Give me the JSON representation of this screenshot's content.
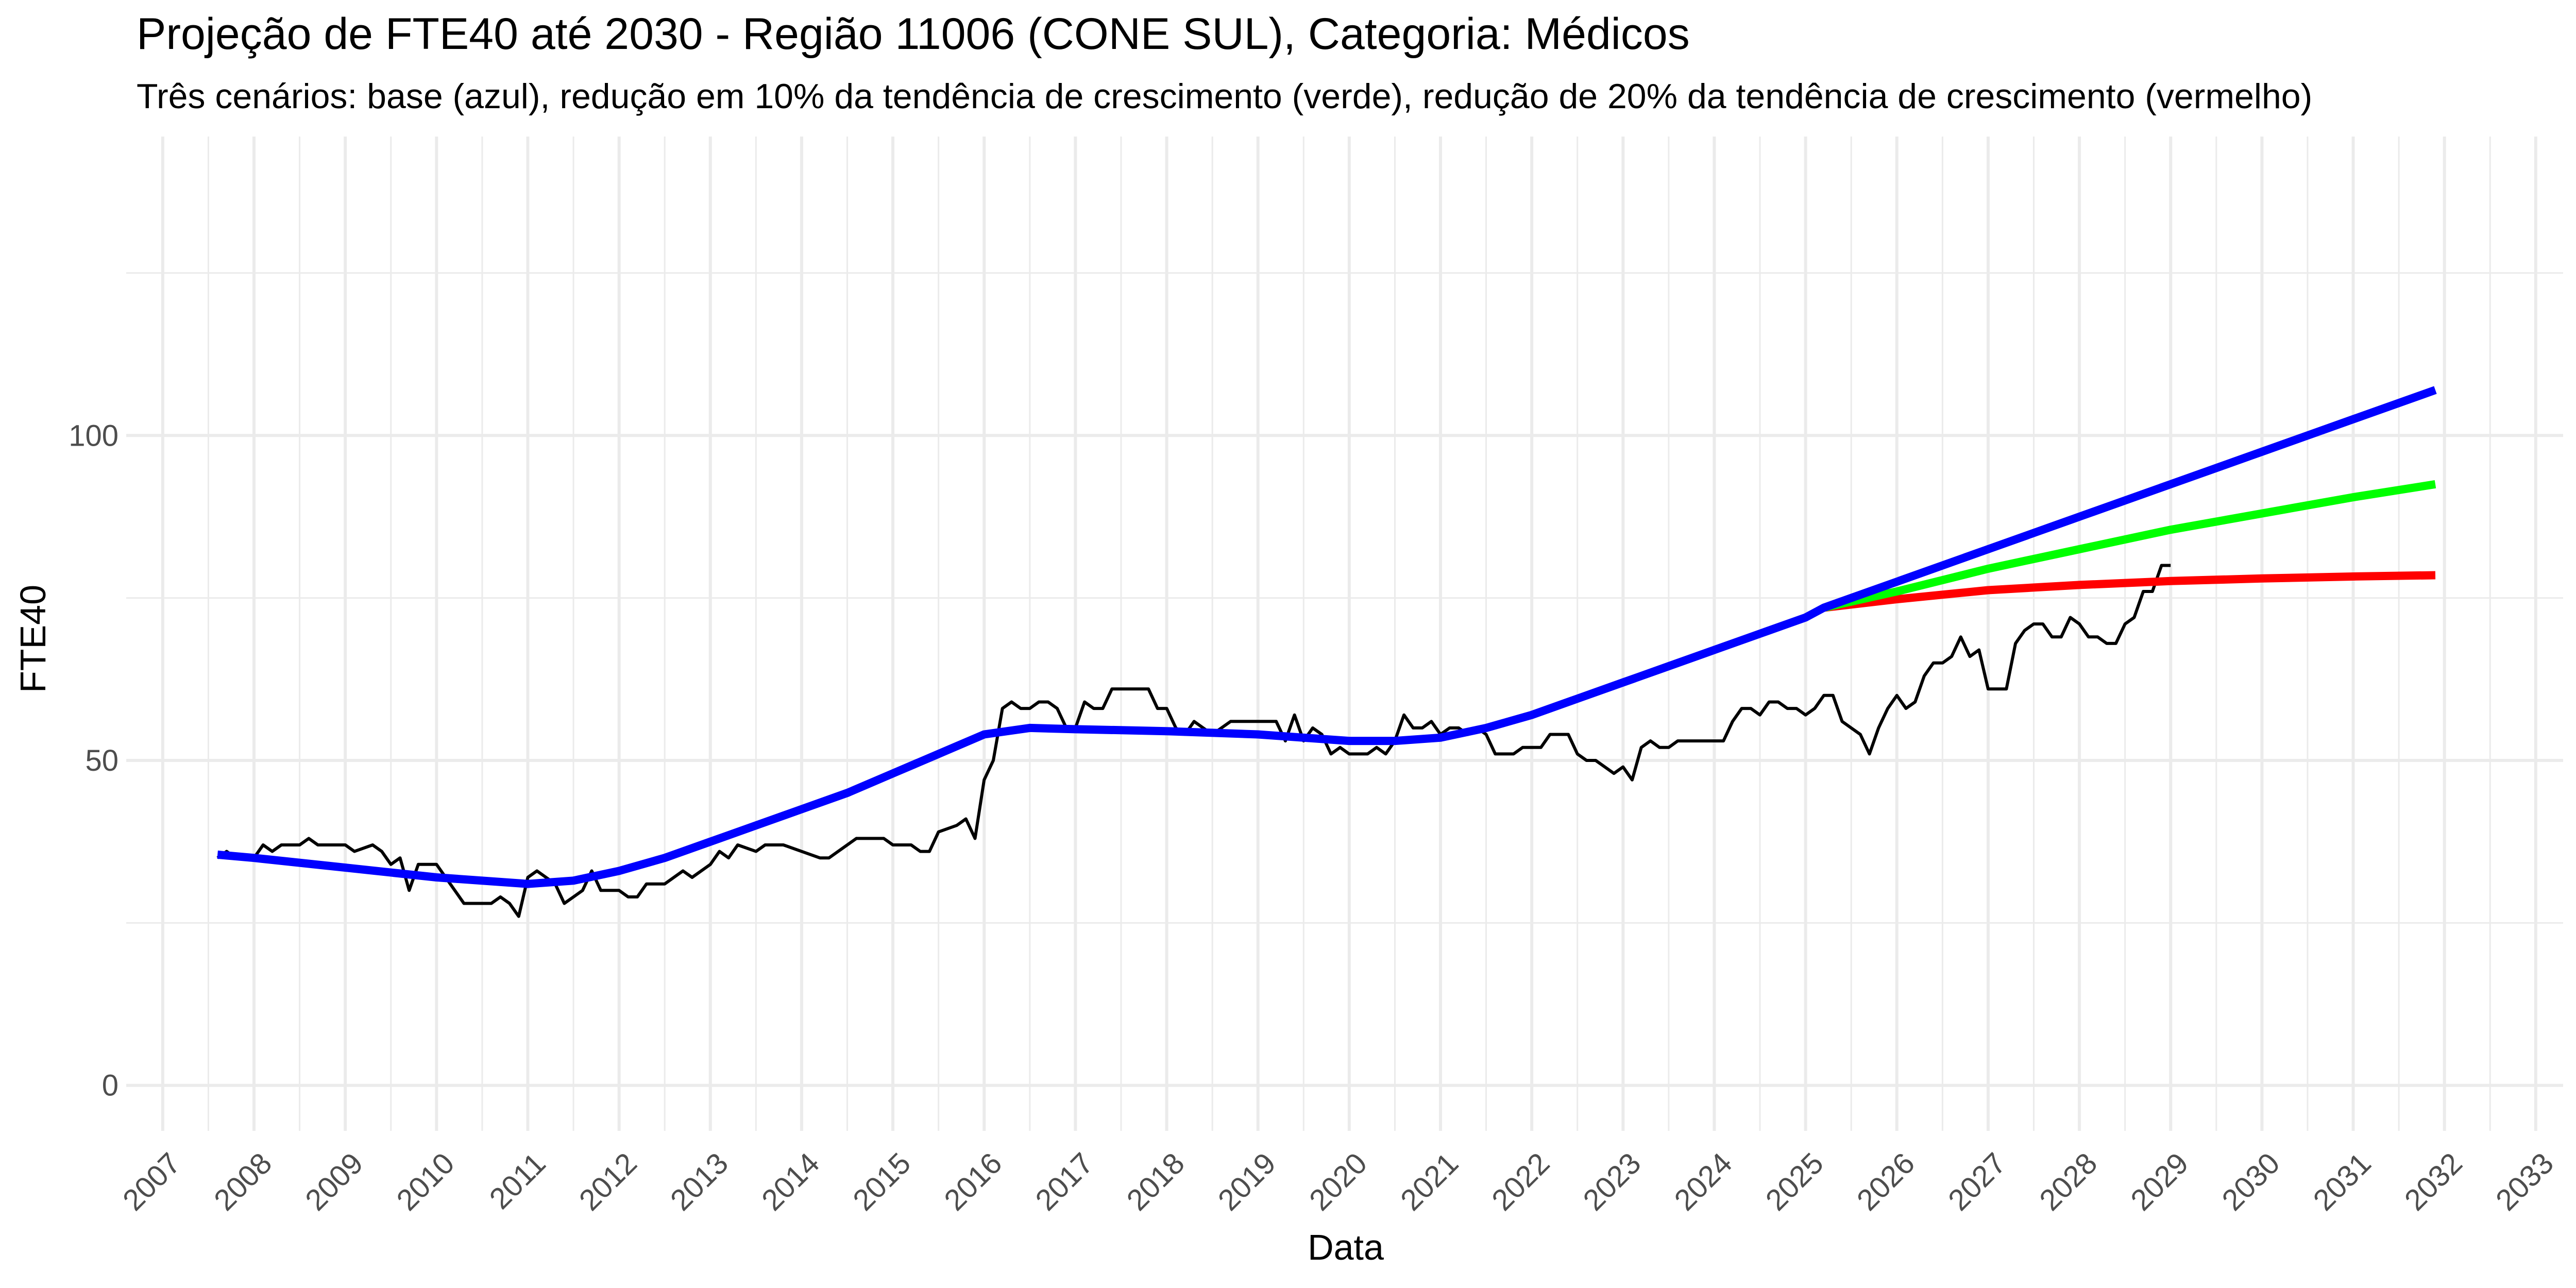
{
  "chart_data": {
    "type": "line",
    "title": "Projeção de FTE40 até 2030 - Região 11006 (CONE SUL), Categoria: Médicos",
    "subtitle": "Três cenários: base (azul), redução em 10% da tendência de crescimento (verde), redução de 20% da tendência de crescimento (vermelho)",
    "xlabel": "Data",
    "ylabel": "FTE40",
    "xlim": [
      2006.6,
      2033.3
    ],
    "ylim": [
      -7,
      146
    ],
    "grid": true,
    "x_ticks": [
      "2007",
      "2008",
      "2009",
      "2010",
      "2011",
      "2012",
      "2013",
      "2014",
      "2015",
      "2016",
      "2017",
      "2018",
      "2019",
      "2020",
      "2021",
      "2022",
      "2023",
      "2024",
      "2025",
      "2026",
      "2027",
      "2028",
      "2029",
      "2030",
      "2031",
      "2032",
      "2033"
    ],
    "y_ticks": [
      "0",
      "50",
      "100"
    ],
    "colors": {
      "observed": "#000000",
      "base": "#0000ff",
      "reduction10": "#00ff00",
      "reduction20": "#ff0000",
      "grid": "#ebebeb"
    },
    "series": [
      {
        "key": "observed",
        "points": [
          [
            2007.6,
            35
          ],
          [
            2007.7,
            36
          ],
          [
            2007.8,
            35
          ],
          [
            2008.0,
            35
          ],
          [
            2008.1,
            37
          ],
          [
            2008.2,
            36
          ],
          [
            2008.3,
            37
          ],
          [
            2008.5,
            37
          ],
          [
            2008.6,
            38
          ],
          [
            2008.7,
            37
          ],
          [
            2008.9,
            37
          ],
          [
            2009.0,
            37
          ],
          [
            2009.1,
            36
          ],
          [
            2009.3,
            37
          ],
          [
            2009.4,
            36
          ],
          [
            2009.5,
            34
          ],
          [
            2009.6,
            35
          ],
          [
            2009.7,
            30
          ],
          [
            2009.8,
            34
          ],
          [
            2010.0,
            34
          ],
          [
            2010.1,
            32
          ],
          [
            2010.3,
            28
          ],
          [
            2010.5,
            28
          ],
          [
            2010.6,
            28
          ],
          [
            2010.7,
            29
          ],
          [
            2010.8,
            28
          ],
          [
            2010.9,
            26
          ],
          [
            2011.0,
            32
          ],
          [
            2011.1,
            33
          ],
          [
            2011.3,
            31
          ],
          [
            2011.4,
            28
          ],
          [
            2011.5,
            29
          ],
          [
            2011.6,
            30
          ],
          [
            2011.7,
            33
          ],
          [
            2011.8,
            30
          ],
          [
            2012.0,
            30
          ],
          [
            2012.1,
            29
          ],
          [
            2012.2,
            29
          ],
          [
            2012.3,
            31
          ],
          [
            2012.4,
            31
          ],
          [
            2012.5,
            31
          ],
          [
            2012.7,
            33
          ],
          [
            2012.8,
            32
          ],
          [
            2013.0,
            34
          ],
          [
            2013.1,
            36
          ],
          [
            2013.2,
            35
          ],
          [
            2013.3,
            37
          ],
          [
            2013.5,
            36
          ],
          [
            2013.6,
            37
          ],
          [
            2013.8,
            37
          ],
          [
            2014.0,
            36
          ],
          [
            2014.2,
            35
          ],
          [
            2014.3,
            35
          ],
          [
            2014.4,
            36
          ],
          [
            2014.6,
            38
          ],
          [
            2014.8,
            38
          ],
          [
            2014.9,
            38
          ],
          [
            2015.0,
            37
          ],
          [
            2015.2,
            37
          ],
          [
            2015.3,
            36
          ],
          [
            2015.4,
            36
          ],
          [
            2015.5,
            39
          ],
          [
            2015.7,
            40
          ],
          [
            2015.8,
            41
          ],
          [
            2015.9,
            38
          ],
          [
            2016.0,
            47
          ],
          [
            2016.1,
            50
          ],
          [
            2016.2,
            58
          ],
          [
            2016.3,
            59
          ],
          [
            2016.4,
            58
          ],
          [
            2016.5,
            58
          ],
          [
            2016.6,
            59
          ],
          [
            2016.7,
            59
          ],
          [
            2016.8,
            58
          ],
          [
            2016.9,
            55
          ],
          [
            2017.0,
            55
          ],
          [
            2017.1,
            59
          ],
          [
            2017.2,
            58
          ],
          [
            2017.3,
            58
          ],
          [
            2017.4,
            61
          ],
          [
            2017.5,
            61
          ],
          [
            2017.6,
            61
          ],
          [
            2017.7,
            61
          ],
          [
            2017.8,
            61
          ],
          [
            2017.9,
            58
          ],
          [
            2018.0,
            58
          ],
          [
            2018.1,
            55
          ],
          [
            2018.2,
            54
          ],
          [
            2018.3,
            56
          ],
          [
            2018.4,
            55
          ],
          [
            2018.5,
            54
          ],
          [
            2018.6,
            55
          ],
          [
            2018.7,
            56
          ],
          [
            2018.9,
            56
          ],
          [
            2019.0,
            56
          ],
          [
            2019.2,
            56
          ],
          [
            2019.3,
            53
          ],
          [
            2019.4,
            57
          ],
          [
            2019.5,
            53
          ],
          [
            2019.6,
            55
          ],
          [
            2019.7,
            54
          ],
          [
            2019.8,
            51
          ],
          [
            2019.9,
            52
          ],
          [
            2020.0,
            51
          ],
          [
            2020.1,
            51
          ],
          [
            2020.2,
            51
          ],
          [
            2020.3,
            52
          ],
          [
            2020.4,
            51
          ],
          [
            2020.5,
            53
          ],
          [
            2020.6,
            57
          ],
          [
            2020.7,
            55
          ],
          [
            2020.8,
            55
          ],
          [
            2020.9,
            56
          ],
          [
            2021.0,
            54
          ],
          [
            2021.1,
            55
          ],
          [
            2021.2,
            55
          ],
          [
            2021.3,
            54
          ],
          [
            2021.4,
            55
          ],
          [
            2021.5,
            54
          ],
          [
            2021.6,
            51
          ],
          [
            2021.7,
            51
          ],
          [
            2021.8,
            51
          ],
          [
            2021.9,
            52
          ],
          [
            2022.0,
            52
          ],
          [
            2022.1,
            52
          ],
          [
            2022.2,
            54
          ],
          [
            2022.3,
            54
          ],
          [
            2022.4,
            54
          ],
          [
            2022.5,
            51
          ],
          [
            2022.6,
            50
          ],
          [
            2022.7,
            50
          ],
          [
            2022.8,
            49
          ],
          [
            2022.9,
            48
          ],
          [
            2023.0,
            49
          ],
          [
            2023.1,
            47
          ],
          [
            2023.2,
            52
          ],
          [
            2023.3,
            53
          ],
          [
            2023.4,
            52
          ],
          [
            2023.5,
            52
          ],
          [
            2023.6,
            53
          ],
          [
            2023.7,
            53
          ],
          [
            2023.8,
            53
          ],
          [
            2023.9,
            53
          ],
          [
            2024.0,
            53
          ],
          [
            2024.1,
            53
          ],
          [
            2024.2,
            56
          ],
          [
            2024.3,
            58
          ],
          [
            2024.4,
            58
          ],
          [
            2024.5,
            57
          ],
          [
            2024.6,
            59
          ],
          [
            2024.7,
            59
          ],
          [
            2024.8,
            58
          ],
          [
            2024.9,
            58
          ],
          [
            2025.0,
            57
          ],
          [
            2025.1,
            58
          ],
          [
            2025.2,
            60
          ],
          [
            2025.3,
            60
          ],
          [
            2025.4,
            56
          ],
          [
            2025.5,
            55
          ],
          [
            2025.6,
            54
          ],
          [
            2025.7,
            51
          ],
          [
            2025.8,
            55
          ],
          [
            2025.9,
            58
          ],
          [
            2026.0,
            60
          ],
          [
            2026.1,
            58
          ],
          [
            2026.2,
            59
          ],
          [
            2026.3,
            63
          ],
          [
            2026.4,
            65
          ],
          [
            2026.5,
            65
          ],
          [
            2026.6,
            66
          ],
          [
            2026.7,
            69
          ],
          [
            2026.8,
            66
          ],
          [
            2026.9,
            67
          ],
          [
            2027.0,
            61
          ],
          [
            2027.1,
            61
          ],
          [
            2027.2,
            61
          ],
          [
            2027.3,
            68
          ],
          [
            2027.4,
            70
          ],
          [
            2027.5,
            71
          ],
          [
            2027.6,
            71
          ],
          [
            2027.7,
            69
          ],
          [
            2027.8,
            69
          ],
          [
            2027.9,
            72
          ],
          [
            2028.0,
            71
          ],
          [
            2028.1,
            69
          ],
          [
            2028.2,
            69
          ],
          [
            2028.3,
            68
          ],
          [
            2028.4,
            68
          ],
          [
            2028.5,
            71
          ],
          [
            2028.6,
            72
          ],
          [
            2028.7,
            76
          ],
          [
            2028.8,
            76
          ],
          [
            2028.9,
            80
          ],
          [
            2029.0,
            80
          ]
        ]
      },
      {
        "key": "base",
        "points": [
          [
            2007.6,
            35.5
          ],
          [
            2008.0,
            35
          ],
          [
            2009.0,
            33.5
          ],
          [
            2010.0,
            32
          ],
          [
            2011.0,
            31
          ],
          [
            2011.5,
            31.5
          ],
          [
            2012.0,
            33
          ],
          [
            2012.5,
            35
          ],
          [
            2013.0,
            37.5
          ],
          [
            2013.5,
            40
          ],
          [
            2014.0,
            42.5
          ],
          [
            2014.5,
            45
          ],
          [
            2015.0,
            48
          ],
          [
            2015.5,
            51
          ],
          [
            2016.0,
            54
          ],
          [
            2016.5,
            55
          ],
          [
            2017.0,
            54.8
          ],
          [
            2018.0,
            54.5
          ],
          [
            2019.0,
            54
          ],
          [
            2019.5,
            53.5
          ],
          [
            2020.0,
            53
          ],
          [
            2020.5,
            53
          ],
          [
            2021.0,
            53.5
          ],
          [
            2021.5,
            55
          ],
          [
            2022.0,
            57
          ],
          [
            2022.5,
            59.5
          ],
          [
            2023.0,
            62
          ],
          [
            2023.5,
            64.5
          ],
          [
            2024.0,
            67
          ],
          [
            2024.5,
            69.5
          ],
          [
            2025.0,
            72
          ],
          [
            2025.2,
            73.5
          ],
          [
            2026.0,
            77.5
          ],
          [
            2027.0,
            82.5
          ],
          [
            2028.0,
            87.5
          ],
          [
            2029.0,
            92.5
          ],
          [
            2030.0,
            97.5
          ],
          [
            2031.0,
            102.5
          ],
          [
            2031.9,
            107
          ]
        ]
      },
      {
        "key": "reduction10",
        "points": [
          [
            2025.2,
            73.5
          ],
          [
            2026.0,
            76
          ],
          [
            2027.0,
            79.5
          ],
          [
            2028.0,
            82.5
          ],
          [
            2029.0,
            85.5
          ],
          [
            2030.0,
            88
          ],
          [
            2031.0,
            90.5
          ],
          [
            2031.9,
            92.5
          ]
        ]
      },
      {
        "key": "reduction20",
        "points": [
          [
            2025.2,
            73.5
          ],
          [
            2026.0,
            74.8
          ],
          [
            2027.0,
            76.2
          ],
          [
            2028.0,
            77
          ],
          [
            2029.0,
            77.6
          ],
          [
            2030.0,
            78
          ],
          [
            2031.0,
            78.3
          ],
          [
            2031.9,
            78.5
          ]
        ]
      }
    ]
  }
}
